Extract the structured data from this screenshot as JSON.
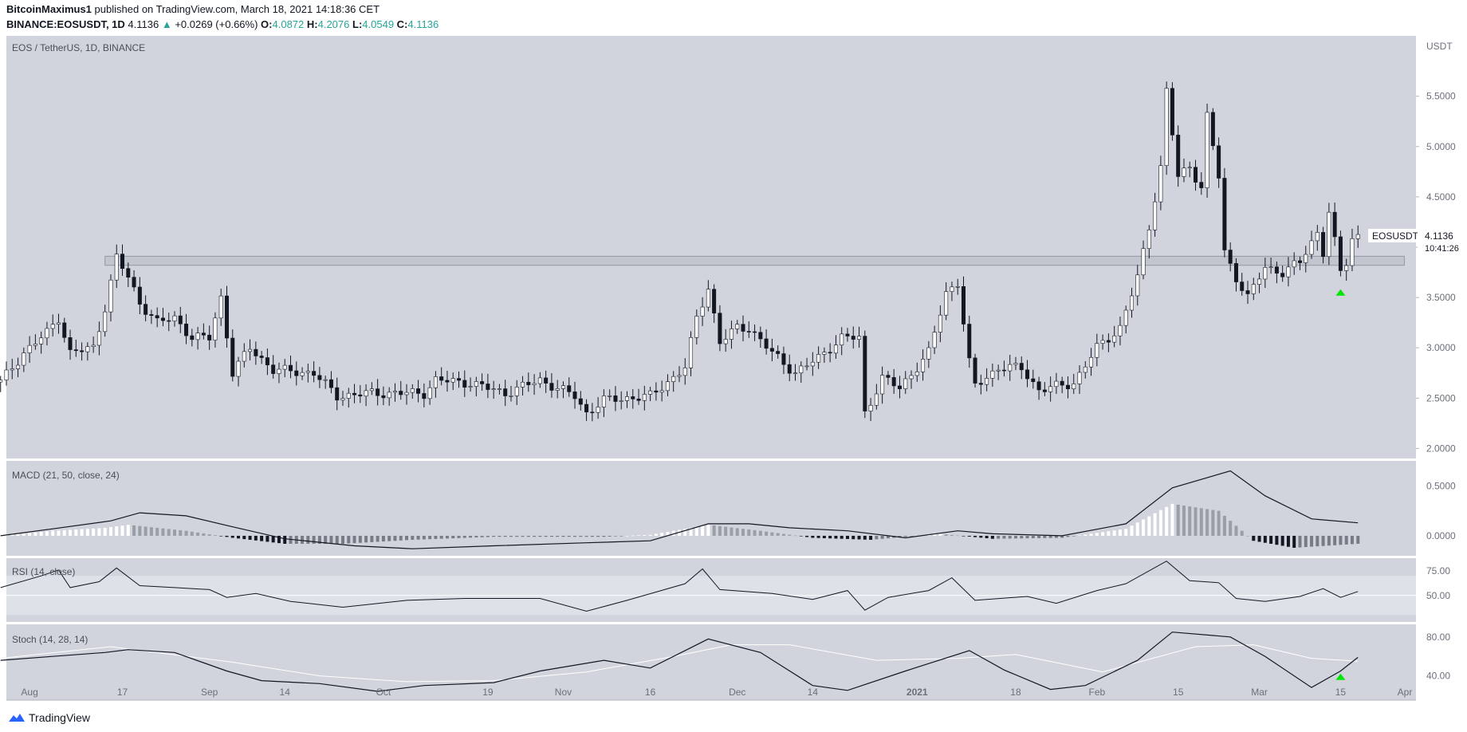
{
  "header": {
    "author": "BitcoinMaximus1",
    "published_text": "published on TradingView.com, March 18, 2021 14:18:36 CET",
    "symbol": "BINANCE:EOSUSDT, 1D",
    "last": "4.1136",
    "change_arrow": "▲",
    "change": "+0.0269 (+0.66%)",
    "o_label": "O:",
    "o": "4.0872",
    "h_label": "H:",
    "h": "4.2076",
    "l_label": "L:",
    "l": "4.0549",
    "c_label": "C:",
    "c": "4.1136"
  },
  "footer": {
    "brand": "TradingView",
    "logo_icon": "tradingview-logo-icon"
  },
  "colors": {
    "pane_bg": "#d1d4dc",
    "up_body": "#ffffff",
    "down_body": "#131722",
    "wick": "#131722",
    "signal_green": "#00e600",
    "price_badge": "#ffffff"
  },
  "chart_data": [
    {
      "type": "candlestick",
      "title": "EOS / TetherUS, 1D, BINANCE",
      "unit_label": "USDT",
      "y_ticks": [
        "5.5000",
        "5.0000",
        "4.5000",
        "4.0000",
        "3.5000",
        "3.0000",
        "2.5000",
        "2.0000"
      ],
      "ylim": [
        1.9,
        6.1
      ],
      "x_ticks": [
        "Aug",
        "17",
        "Sep",
        "14",
        "Oct",
        "19",
        "Nov",
        "16",
        "Dec",
        "14",
        "2021",
        "18",
        "Feb",
        "15",
        "Mar",
        "15",
        "Apr"
      ],
      "x_tick_dates": [
        "2020-08-01",
        "2020-08-17",
        "2020-09-01",
        "2020-09-14",
        "2020-10-01",
        "2020-10-19",
        "2020-11-01",
        "2020-11-16",
        "2020-12-01",
        "2020-12-14",
        "2021-01-01",
        "2021-01-18",
        "2021-02-01",
        "2021-02-15",
        "2021-03-01",
        "2021-03-15",
        "2021-04-01"
      ],
      "x_range": [
        "2020-07-28",
        "2021-03-28"
      ],
      "bold_ticks": [
        "2021"
      ],
      "resistance_zone": [
        3.82,
        3.91
      ],
      "resistance_zone_range": [
        "2020-08-14",
        "2021-03-26"
      ],
      "last_price_label": "EOSUSDT",
      "last_price": "4.1136",
      "countdown": "10:41:26",
      "signal_marker": {
        "date": "2021-03-15",
        "value": 3.55,
        "shape": "triangle-up"
      },
      "anchor_closes": [
        [
          "2020-07-27",
          2.66
        ],
        [
          "2020-07-31",
          2.95
        ],
        [
          "2020-08-04",
          3.15
        ],
        [
          "2020-08-06",
          3.3
        ],
        [
          "2020-08-08",
          2.95
        ],
        [
          "2020-08-12",
          3.0
        ],
        [
          "2020-08-14",
          3.4
        ],
        [
          "2020-08-16",
          3.9
        ],
        [
          "2020-08-18",
          3.7
        ],
        [
          "2020-08-20",
          3.45
        ],
        [
          "2020-08-23",
          3.25
        ],
        [
          "2020-08-26",
          3.3
        ],
        [
          "2020-08-29",
          3.1
        ],
        [
          "2020-09-01",
          3.1
        ],
        [
          "2020-09-03",
          3.5
        ],
        [
          "2020-09-05",
          2.75
        ],
        [
          "2020-09-08",
          3.0
        ],
        [
          "2020-09-12",
          2.78
        ],
        [
          "2020-09-19",
          2.75
        ],
        [
          "2020-09-23",
          2.52
        ],
        [
          "2020-09-29",
          2.55
        ],
        [
          "2020-10-08",
          2.55
        ],
        [
          "2020-10-10",
          2.68
        ],
        [
          "2020-10-16",
          2.65
        ],
        [
          "2020-10-22",
          2.55
        ],
        [
          "2020-10-28",
          2.68
        ],
        [
          "2020-11-03",
          2.52
        ],
        [
          "2020-11-05",
          2.35
        ],
        [
          "2020-11-08",
          2.48
        ],
        [
          "2020-11-16",
          2.52
        ],
        [
          "2020-11-22",
          2.8
        ],
        [
          "2020-11-24",
          3.3
        ],
        [
          "2020-11-26",
          3.6
        ],
        [
          "2020-11-28",
          3.05
        ],
        [
          "2020-12-01",
          3.2
        ],
        [
          "2020-12-03",
          3.2
        ],
        [
          "2020-12-07",
          2.95
        ],
        [
          "2020-12-11",
          2.75
        ],
        [
          "2020-12-15",
          2.9
        ],
        [
          "2020-12-19",
          3.1
        ],
        [
          "2020-12-22",
          3.1
        ],
        [
          "2020-12-23",
          2.35
        ],
        [
          "2020-12-26",
          2.7
        ],
        [
          "2020-12-29",
          2.6
        ],
        [
          "2021-01-03",
          2.95
        ],
        [
          "2021-01-06",
          3.55
        ],
        [
          "2021-01-08",
          3.65
        ],
        [
          "2021-01-10",
          2.85
        ],
        [
          "2021-01-11",
          2.62
        ],
        [
          "2021-01-15",
          2.8
        ],
        [
          "2021-01-19",
          2.8
        ],
        [
          "2021-01-22",
          2.58
        ],
        [
          "2021-01-28",
          2.65
        ],
        [
          "2021-02-01",
          3.0
        ],
        [
          "2021-02-05",
          3.2
        ],
        [
          "2021-02-08",
          3.7
        ],
        [
          "2021-02-10",
          4.2
        ],
        [
          "2021-02-12",
          4.8
        ],
        [
          "2021-02-13",
          5.55
        ],
        [
          "2021-02-15",
          4.7
        ],
        [
          "2021-02-17",
          4.8
        ],
        [
          "2021-02-19",
          4.6
        ],
        [
          "2021-02-20",
          5.3
        ],
        [
          "2021-02-22",
          4.7
        ],
        [
          "2021-02-23",
          3.95
        ],
        [
          "2021-02-25",
          3.7
        ],
        [
          "2021-02-27",
          3.5
        ],
        [
          "2021-03-02",
          3.8
        ],
        [
          "2021-03-05",
          3.75
        ],
        [
          "2021-03-08",
          3.85
        ],
        [
          "2021-03-11",
          4.15
        ],
        [
          "2021-03-12",
          3.95
        ],
        [
          "2021-03-13",
          4.35
        ],
        [
          "2021-03-14",
          4.05
        ],
        [
          "2021-03-15",
          3.75
        ],
        [
          "2021-03-16",
          3.85
        ],
        [
          "2021-03-17",
          4.09
        ],
        [
          "2021-03-18",
          4.1136
        ]
      ]
    },
    {
      "type": "line",
      "title": "MACD (21, 50, close, 24)",
      "y_ticks": [
        "0.5000",
        "0.0000"
      ],
      "ylim": [
        -0.2,
        0.75
      ],
      "histogram_colors": {
        "rising_pos": "#ffffff",
        "falling_pos": "#9a9ea6",
        "falling_neg": "#131722",
        "rising_neg": "#787b86"
      },
      "line_color": "#131722",
      "line_values": [
        [
          "2020-07-27",
          0.0
        ],
        [
          "2020-08-05",
          0.07
        ],
        [
          "2020-08-15",
          0.15
        ],
        [
          "2020-08-20",
          0.23
        ],
        [
          "2020-08-28",
          0.2
        ],
        [
          "2020-09-05",
          0.09
        ],
        [
          "2020-09-14",
          -0.03
        ],
        [
          "2020-09-26",
          -0.1
        ],
        [
          "2020-10-06",
          -0.13
        ],
        [
          "2020-10-20",
          -0.1
        ],
        [
          "2020-11-05",
          -0.07
        ],
        [
          "2020-11-16",
          -0.05
        ],
        [
          "2020-11-26",
          0.12
        ],
        [
          "2020-12-03",
          0.12
        ],
        [
          "2020-12-10",
          0.08
        ],
        [
          "2020-12-20",
          0.05
        ],
        [
          "2020-12-30",
          -0.02
        ],
        [
          "2021-01-08",
          0.05
        ],
        [
          "2021-01-14",
          0.02
        ],
        [
          "2021-01-26",
          0.0
        ],
        [
          "2021-02-06",
          0.12
        ],
        [
          "2021-02-14",
          0.48
        ],
        [
          "2021-02-24",
          0.65
        ],
        [
          "2021-03-02",
          0.4
        ],
        [
          "2021-03-10",
          0.17
        ],
        [
          "2021-03-18",
          0.13
        ]
      ],
      "histogram_values": [
        [
          "2020-07-27",
          0.0
        ],
        [
          "2020-08-05",
          0.05
        ],
        [
          "2020-08-14",
          0.08
        ],
        [
          "2020-08-18",
          0.11
        ],
        [
          "2020-08-28",
          0.05
        ],
        [
          "2020-09-05",
          -0.02
        ],
        [
          "2020-09-14",
          -0.08
        ],
        [
          "2020-09-24",
          -0.08
        ],
        [
          "2020-10-06",
          -0.04
        ],
        [
          "2020-10-20",
          -0.01
        ],
        [
          "2020-11-08",
          -0.01
        ],
        [
          "2020-11-16",
          0.01
        ],
        [
          "2020-11-26",
          0.11
        ],
        [
          "2020-12-05",
          0.05
        ],
        [
          "2020-12-14",
          -0.02
        ],
        [
          "2020-12-24",
          -0.04
        ],
        [
          "2021-01-05",
          0.02
        ],
        [
          "2021-01-14",
          -0.03
        ],
        [
          "2021-01-26",
          -0.02
        ],
        [
          "2021-02-06",
          0.07
        ],
        [
          "2021-02-14",
          0.32
        ],
        [
          "2021-02-22",
          0.25
        ],
        [
          "2021-02-28",
          -0.05
        ],
        [
          "2021-03-07",
          -0.12
        ],
        [
          "2021-03-18",
          -0.08
        ]
      ]
    },
    {
      "type": "line",
      "title": "RSI (14, close)",
      "y_ticks": [
        "75.00",
        "50.00"
      ],
      "ylim": [
        23,
        88
      ],
      "band": [
        30,
        70
      ],
      "values": [
        [
          "2020-07-27",
          58
        ],
        [
          "2020-08-03",
          70
        ],
        [
          "2020-08-06",
          76
        ],
        [
          "2020-08-08",
          58
        ],
        [
          "2020-08-13",
          64
        ],
        [
          "2020-08-16",
          78
        ],
        [
          "2020-08-20",
          60
        ],
        [
          "2020-08-26",
          58
        ],
        [
          "2020-09-01",
          56
        ],
        [
          "2020-09-04",
          48
        ],
        [
          "2020-09-09",
          52
        ],
        [
          "2020-09-15",
          44
        ],
        [
          "2020-09-24",
          38
        ],
        [
          "2020-10-05",
          45
        ],
        [
          "2020-10-15",
          47
        ],
        [
          "2020-10-28",
          47
        ],
        [
          "2020-11-05",
          34
        ],
        [
          "2020-11-12",
          45
        ],
        [
          "2020-11-22",
          62
        ],
        [
          "2020-11-25",
          77
        ],
        [
          "2020-11-28",
          56
        ],
        [
          "2020-12-07",
          52
        ],
        [
          "2020-12-14",
          46
        ],
        [
          "2020-12-20",
          55
        ],
        [
          "2020-12-23",
          35
        ],
        [
          "2020-12-27",
          48
        ],
        [
          "2021-01-03",
          55
        ],
        [
          "2021-01-07",
          68
        ],
        [
          "2021-01-11",
          45
        ],
        [
          "2021-01-20",
          49
        ],
        [
          "2021-01-25",
          42
        ],
        [
          "2021-02-01",
          55
        ],
        [
          "2021-02-06",
          62
        ],
        [
          "2021-02-13",
          85
        ],
        [
          "2021-02-17",
          65
        ],
        [
          "2021-02-22",
          63
        ],
        [
          "2021-02-25",
          47
        ],
        [
          "2021-03-02",
          44
        ],
        [
          "2021-03-08",
          49
        ],
        [
          "2021-03-12",
          57
        ],
        [
          "2021-03-15",
          48
        ],
        [
          "2021-03-18",
          54
        ]
      ]
    },
    {
      "type": "line",
      "title": "Stoch (14, 28, 14)",
      "y_ticks": [
        "80.00",
        "40.00"
      ],
      "ylim": [
        15,
        93
      ],
      "k_line_color": "#131722",
      "d_line_color": "#ffffff",
      "signal_marker": {
        "date": "2021-03-15",
        "value": 39,
        "shape": "triangle-up"
      },
      "k_values": [
        [
          "2020-07-27",
          56
        ],
        [
          "2020-08-05",
          60
        ],
        [
          "2020-08-14",
          64
        ],
        [
          "2020-08-18",
          67
        ],
        [
          "2020-08-26",
          64
        ],
        [
          "2020-09-04",
          45
        ],
        [
          "2020-09-10",
          35
        ],
        [
          "2020-09-20",
          32
        ],
        [
          "2020-09-30",
          24
        ],
        [
          "2020-10-08",
          30
        ],
        [
          "2020-10-20",
          33
        ],
        [
          "2020-10-28",
          45
        ],
        [
          "2020-11-08",
          56
        ],
        [
          "2020-11-16",
          48
        ],
        [
          "2020-11-26",
          78
        ],
        [
          "2020-12-05",
          64
        ],
        [
          "2020-12-14",
          30
        ],
        [
          "2020-12-20",
          25
        ],
        [
          "2020-12-30",
          45
        ],
        [
          "2021-01-10",
          66
        ],
        [
          "2021-01-16",
          46
        ],
        [
          "2021-01-24",
          26
        ],
        [
          "2021-01-30",
          30
        ],
        [
          "2021-02-08",
          56
        ],
        [
          "2021-02-14",
          85
        ],
        [
          "2021-02-24",
          80
        ],
        [
          "2021-03-02",
          60
        ],
        [
          "2021-03-10",
          28
        ],
        [
          "2021-03-15",
          45
        ],
        [
          "2021-03-18",
          59
        ]
      ],
      "d_values": [
        [
          "2020-07-27",
          58
        ],
        [
          "2020-08-15",
          70
        ],
        [
          "2020-09-05",
          54
        ],
        [
          "2020-09-20",
          40
        ],
        [
          "2020-10-05",
          34
        ],
        [
          "2020-10-20",
          35
        ],
        [
          "2020-11-05",
          44
        ],
        [
          "2020-11-20",
          60
        ],
        [
          "2020-11-30",
          72
        ],
        [
          "2020-12-10",
          72
        ],
        [
          "2020-12-25",
          56
        ],
        [
          "2021-01-08",
          58
        ],
        [
          "2021-01-18",
          62
        ],
        [
          "2021-02-02",
          44
        ],
        [
          "2021-02-18",
          70
        ],
        [
          "2021-02-28",
          72
        ],
        [
          "2021-03-10",
          58
        ],
        [
          "2021-03-18",
          55
        ]
      ]
    }
  ]
}
